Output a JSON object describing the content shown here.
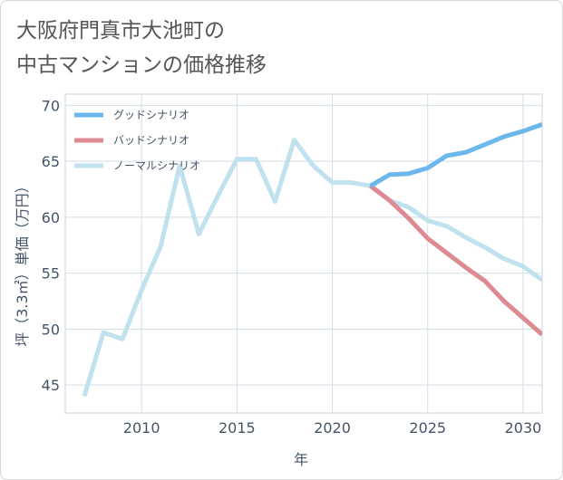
{
  "title": {
    "line1": "大阪府門真市大池町の",
    "line2": "中古マンションの価格推移"
  },
  "chart_data": {
    "type": "line",
    "xlabel": "年",
    "ylabel": "坪（3.3㎡）単価（万円）",
    "xlim": [
      2006,
      2031
    ],
    "ylim": [
      42.5,
      71
    ],
    "xticks": [
      2010,
      2015,
      2020,
      2025,
      2030
    ],
    "yticks": [
      45,
      50,
      55,
      60,
      65,
      70
    ],
    "grid": true,
    "legend_position": "top-left",
    "series": [
      {
        "name": "グッドシナリオ",
        "color": "#6cb8ec",
        "x": [
          2022,
          2023,
          2024,
          2025,
          2026,
          2027,
          2028,
          2029,
          2030,
          2031
        ],
        "y": [
          62.8,
          63.8,
          63.9,
          64.4,
          65.5,
          65.8,
          66.5,
          67.2,
          67.7,
          68.3
        ]
      },
      {
        "name": "バッドシナリオ",
        "color": "#dd8a93",
        "x": [
          2022,
          2023,
          2024,
          2025,
          2026,
          2027,
          2028,
          2029,
          2030,
          2031
        ],
        "y": [
          62.8,
          61.5,
          59.9,
          58.1,
          56.8,
          55.5,
          54.3,
          52.5,
          51.0,
          49.5
        ]
      },
      {
        "name": "ノーマルシナリオ",
        "color": "#c0e1ee",
        "x": [
          2007,
          2008,
          2009,
          2010,
          2011,
          2012,
          2013,
          2014,
          2015,
          2016,
          2017,
          2018,
          2019,
          2020,
          2021,
          2022,
          2023,
          2024,
          2025,
          2026,
          2027,
          2028,
          2029,
          2030,
          2031
        ],
        "y": [
          44.0,
          49.7,
          49.1,
          53.5,
          57.4,
          64.6,
          58.5,
          61.9,
          65.2,
          65.2,
          61.4,
          66.9,
          64.6,
          63.1,
          63.1,
          62.8,
          61.5,
          60.9,
          59.7,
          59.2,
          58.2,
          57.3,
          56.3,
          55.6,
          54.4
        ]
      }
    ]
  }
}
